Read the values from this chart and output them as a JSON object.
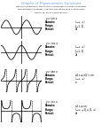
{
  "title": "Graphs of Trigonometric Functions",
  "subtitle_lines": [
    "Here are the graphs of the six main trigonometric functions along with",
    "their domains and ranges. The variables should have x-values from",
    "−2π to 2π, which is from −8 to 8."
  ],
  "background_color": "#ffffff",
  "title_color": "#5b9bd5",
  "rows": [
    {
      "func": "sin",
      "label": "y = sin x",
      "domain_value": "(−∞, ∞)",
      "range_value": "[−1, 1]",
      "period_value": "2π"
    },
    {
      "func": "cos",
      "label": "y = cos x",
      "domain_value": "(−∞, ∞)",
      "range_value": "[−1, 1]",
      "period_value": "2π"
    },
    {
      "func": "tan",
      "label": "y = tan x",
      "domain_value": "all x ≠ π/2 + nπ",
      "range_value": "(−∞, ∞)",
      "period_value": "π"
    },
    {
      "func": "csc",
      "label": "y = csc x",
      "domain_value": "all x ≠ nπ",
      "range_value": "(−∞, −1] ∪ [1, ∞)",
      "period_value": "2π"
    }
  ],
  "graph_line_color": "#000000",
  "axis_line_color": "#000000",
  "asymptote_color": "#000000"
}
